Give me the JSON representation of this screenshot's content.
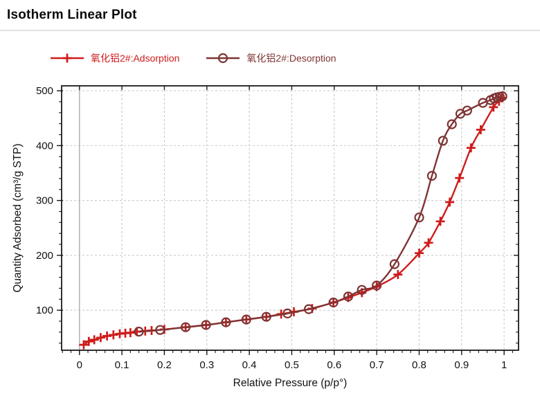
{
  "page": {
    "title": "Isotherm Linear Plot"
  },
  "legend": {
    "items": [
      {
        "label": "氧化铝2#:Adsorption",
        "color": "#cf1b1b",
        "marker": "plus"
      },
      {
        "label": "氧化铝2#:Desorption",
        "color": "#7f3434",
        "marker": "circle"
      }
    ]
  },
  "chart_data": {
    "type": "line",
    "title": "Isotherm Linear Plot",
    "xlabel": "Relative Pressure (p/p°)",
    "ylabel": "Quantity Adsorbed (cm³/g STP)",
    "xlim": [
      -0.042,
      1.034
    ],
    "ylim": [
      27,
      509
    ],
    "x_major_ticks": [
      0,
      0.1,
      0.2,
      0.3,
      0.4,
      0.5,
      0.6,
      0.7,
      0.8,
      0.9,
      1
    ],
    "x_tick_labels": [
      "0",
      "0.1",
      "0.2",
      "0.3",
      "0.4",
      "0.5",
      "0.6",
      "0.7",
      "0.8",
      "0.9",
      "1"
    ],
    "x_minor_step": 0.02,
    "y_major_ticks": [
      100,
      200,
      300,
      400,
      500
    ],
    "y_tick_labels": [
      "100",
      "200",
      "300",
      "400",
      "500"
    ],
    "y_minor_step": 20,
    "grid": {
      "style": "dashed on major ticks",
      "color": "#c9c9c9",
      "zero_line_color": "#b5b5b5"
    },
    "legend_position": "top",
    "series": [
      {
        "name": "氧化铝2#:Adsorption",
        "marker": "plus",
        "color": "#cf1b1b",
        "points": [
          [
            0.01,
            37
          ],
          [
            0.022,
            43
          ],
          [
            0.035,
            46
          ],
          [
            0.05,
            50
          ],
          [
            0.065,
            53
          ],
          [
            0.08,
            55
          ],
          [
            0.095,
            57
          ],
          [
            0.108,
            58
          ],
          [
            0.12,
            59
          ],
          [
            0.135,
            61
          ],
          [
            0.155,
            62
          ],
          [
            0.17,
            63
          ],
          [
            0.2,
            65
          ],
          [
            0.25,
            69
          ],
          [
            0.298,
            73
          ],
          [
            0.345,
            78
          ],
          [
            0.393,
            83
          ],
          [
            0.44,
            88
          ],
          [
            0.475,
            93
          ],
          [
            0.505,
            97
          ],
          [
            0.548,
            103
          ],
          [
            0.598,
            114
          ],
          [
            0.633,
            123
          ],
          [
            0.665,
            132
          ],
          [
            0.7,
            143
          ],
          [
            0.75,
            165
          ],
          [
            0.8,
            204
          ],
          [
            0.822,
            223
          ],
          [
            0.85,
            262
          ],
          [
            0.872,
            297
          ],
          [
            0.895,
            341
          ],
          [
            0.922,
            396
          ],
          [
            0.945,
            429
          ],
          [
            0.975,
            470
          ],
          [
            0.988,
            481
          ],
          [
            0.995,
            487
          ]
        ]
      },
      {
        "name": "氧化铝2#:Desorption",
        "marker": "circle",
        "color": "#7f3434",
        "points": [
          [
            0.14,
            61
          ],
          [
            0.19,
            64
          ],
          [
            0.25,
            69
          ],
          [
            0.298,
            73
          ],
          [
            0.345,
            78
          ],
          [
            0.393,
            83
          ],
          [
            0.44,
            88
          ],
          [
            0.49,
            94
          ],
          [
            0.54,
            102
          ],
          [
            0.598,
            114
          ],
          [
            0.633,
            125
          ],
          [
            0.665,
            137
          ],
          [
            0.7,
            145
          ],
          [
            0.742,
            184
          ],
          [
            0.8,
            269
          ],
          [
            0.83,
            345
          ],
          [
            0.856,
            409
          ],
          [
            0.877,
            439
          ],
          [
            0.897,
            458
          ],
          [
            0.913,
            464
          ],
          [
            0.95,
            478
          ],
          [
            0.968,
            483
          ],
          [
            0.976,
            486
          ],
          [
            0.983,
            488
          ],
          [
            0.99,
            489
          ],
          [
            0.996,
            490
          ]
        ]
      }
    ]
  }
}
